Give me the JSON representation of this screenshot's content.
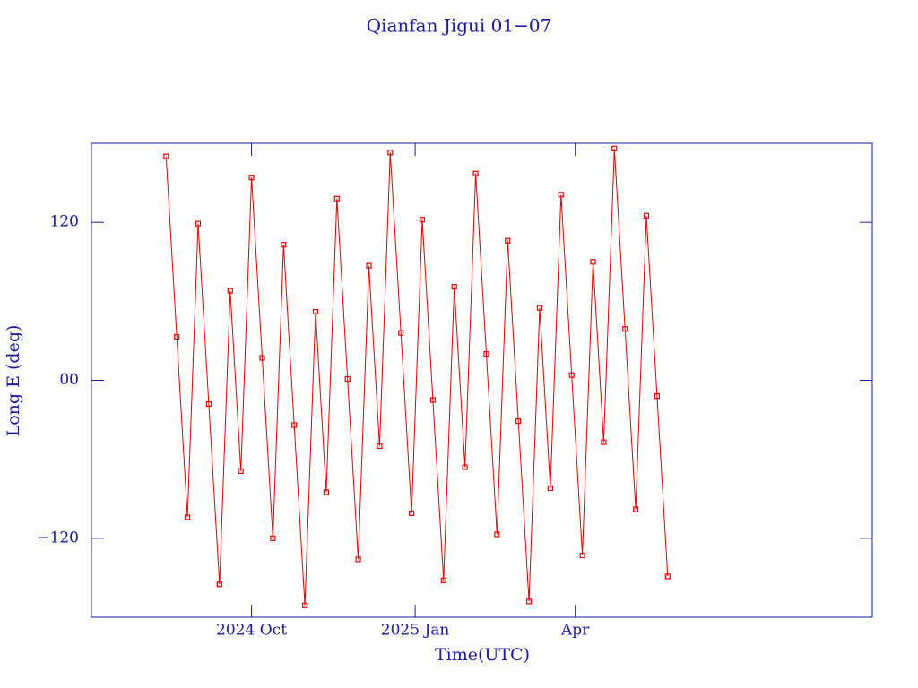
{
  "chart_data": {
    "type": "line",
    "title": "Qianfan Jigui 01−07",
    "x_label": "Time(UTC)",
    "y_label": "Long E (deg)",
    "x": [
      "2024-08-14",
      "2024-08-20",
      "2024-08-26",
      "2024-09-01",
      "2024-09-07",
      "2024-09-13",
      "2024-09-19",
      "2024-09-25",
      "2024-10-01",
      "2024-10-07",
      "2024-10-13",
      "2024-10-19",
      "2024-10-25",
      "2024-10-31",
      "2024-11-06",
      "2024-11-12",
      "2024-11-18",
      "2024-11-24",
      "2024-11-30",
      "2024-12-06",
      "2024-12-12",
      "2024-12-18",
      "2024-12-24",
      "2024-12-30",
      "2025-01-05",
      "2025-01-11",
      "2025-01-17",
      "2025-01-23",
      "2025-01-29",
      "2025-02-04",
      "2025-02-10",
      "2025-02-16",
      "2025-02-22",
      "2025-02-28",
      "2025-03-06",
      "2025-03-12",
      "2025-03-18",
      "2025-03-24",
      "2025-03-30",
      "2025-04-05",
      "2025-04-11",
      "2025-04-17",
      "2025-04-23",
      "2025-04-29",
      "2025-05-05",
      "2025-05-11",
      "2025-05-17",
      "2025-05-23"
    ],
    "series": [
      {
        "color": "#e00000",
        "values": [
          170,
          33,
          -104,
          119,
          -18,
          -155,
          68,
          -69,
          154,
          17,
          -120,
          103,
          -34,
          -171,
          52,
          -85,
          138,
          1,
          -136,
          87,
          -50,
          173,
          36,
          -101,
          122,
          -15,
          -152,
          71,
          -66,
          157,
          20,
          -117,
          106,
          -31,
          -168,
          55,
          -82,
          141,
          4,
          -133,
          90,
          -47,
          176,
          39,
          -98,
          125,
          -12,
          -149
        ]
      }
    ],
    "xlim": [
      "2024-07-03",
      "2025-09-15"
    ],
    "xticks": [
      {
        "value": "2024-10-01",
        "label": "2024 Oct"
      },
      {
        "value": "2025-01-01",
        "label": "2025 Jan"
      },
      {
        "value": "2025-04-01",
        "label": "Apr"
      }
    ],
    "ylim": [
      -180,
      180
    ],
    "yticks": [
      {
        "value": -120,
        "label": "−120"
      },
      {
        "value": 0,
        "label": "00"
      },
      120
    ],
    "axis_color": "#1a1a9a"
  }
}
